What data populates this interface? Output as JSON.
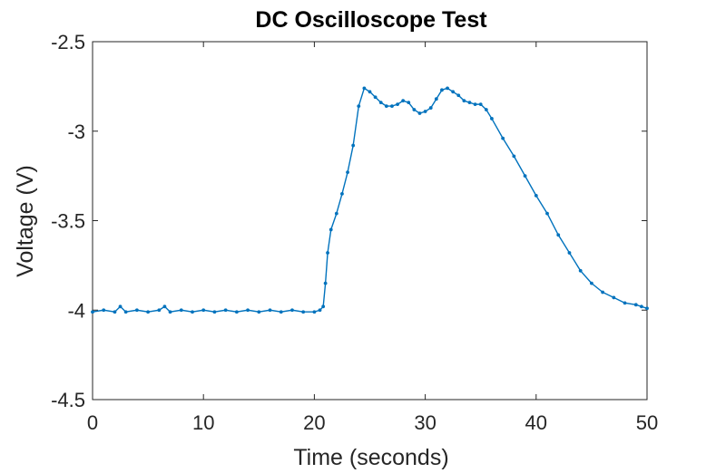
{
  "chart_data": {
    "type": "line",
    "title": "DC Oscilloscope Test",
    "xlabel": "Time (seconds)",
    "ylabel": "Voltage (V)",
    "xlim": [
      0,
      50
    ],
    "ylim": [
      -4.5,
      -2.5
    ],
    "xticks": [
      0,
      10,
      20,
      30,
      40,
      50
    ],
    "xtick_labels": [
      "0",
      "10",
      "20",
      "30",
      "40",
      "50"
    ],
    "yticks": [
      -4.5,
      -4,
      -3.5,
      -3,
      -2.5
    ],
    "ytick_labels": [
      "-4.5",
      "-4",
      "-3.5",
      "-3",
      "-2.5"
    ],
    "grid": false,
    "marker": "dot",
    "series": [
      {
        "color": "#0072BD",
        "x": [
          0,
          1,
          2,
          2.5,
          3,
          4,
          5,
          6,
          6.5,
          7,
          8,
          9,
          10,
          11,
          12,
          13,
          14,
          15,
          16,
          17,
          18,
          19,
          20,
          20.5,
          20.8,
          21.0,
          21.2,
          21.5,
          22,
          22.5,
          23,
          23.5,
          24,
          24.5,
          25,
          25.5,
          26,
          26.5,
          27,
          27.5,
          28,
          28.5,
          29,
          29.5,
          30,
          30.5,
          31,
          31.5,
          32,
          32.5,
          33,
          33.5,
          34,
          34.5,
          35,
          35.5,
          36,
          37,
          38,
          39,
          40,
          41,
          42,
          43,
          44,
          45,
          46,
          47,
          48,
          49,
          49.5,
          50
        ],
        "y": [
          -4.01,
          -4.0,
          -4.01,
          -3.98,
          -4.01,
          -4.0,
          -4.01,
          -4.0,
          -3.98,
          -4.01,
          -4.0,
          -4.01,
          -4.0,
          -4.01,
          -4.0,
          -4.01,
          -4.0,
          -4.01,
          -4.0,
          -4.01,
          -4.0,
          -4.01,
          -4.01,
          -4.0,
          -3.98,
          -3.85,
          -3.68,
          -3.55,
          -3.46,
          -3.35,
          -3.23,
          -3.08,
          -2.86,
          -2.76,
          -2.78,
          -2.81,
          -2.84,
          -2.86,
          -2.86,
          -2.85,
          -2.83,
          -2.84,
          -2.88,
          -2.9,
          -2.89,
          -2.87,
          -2.82,
          -2.77,
          -2.76,
          -2.78,
          -2.8,
          -2.83,
          -2.84,
          -2.85,
          -2.85,
          -2.88,
          -2.93,
          -3.04,
          -3.14,
          -3.25,
          -3.36,
          -3.46,
          -3.58,
          -3.68,
          -3.78,
          -3.85,
          -3.9,
          -3.93,
          -3.96,
          -3.97,
          -3.98,
          -3.99
        ]
      }
    ]
  }
}
